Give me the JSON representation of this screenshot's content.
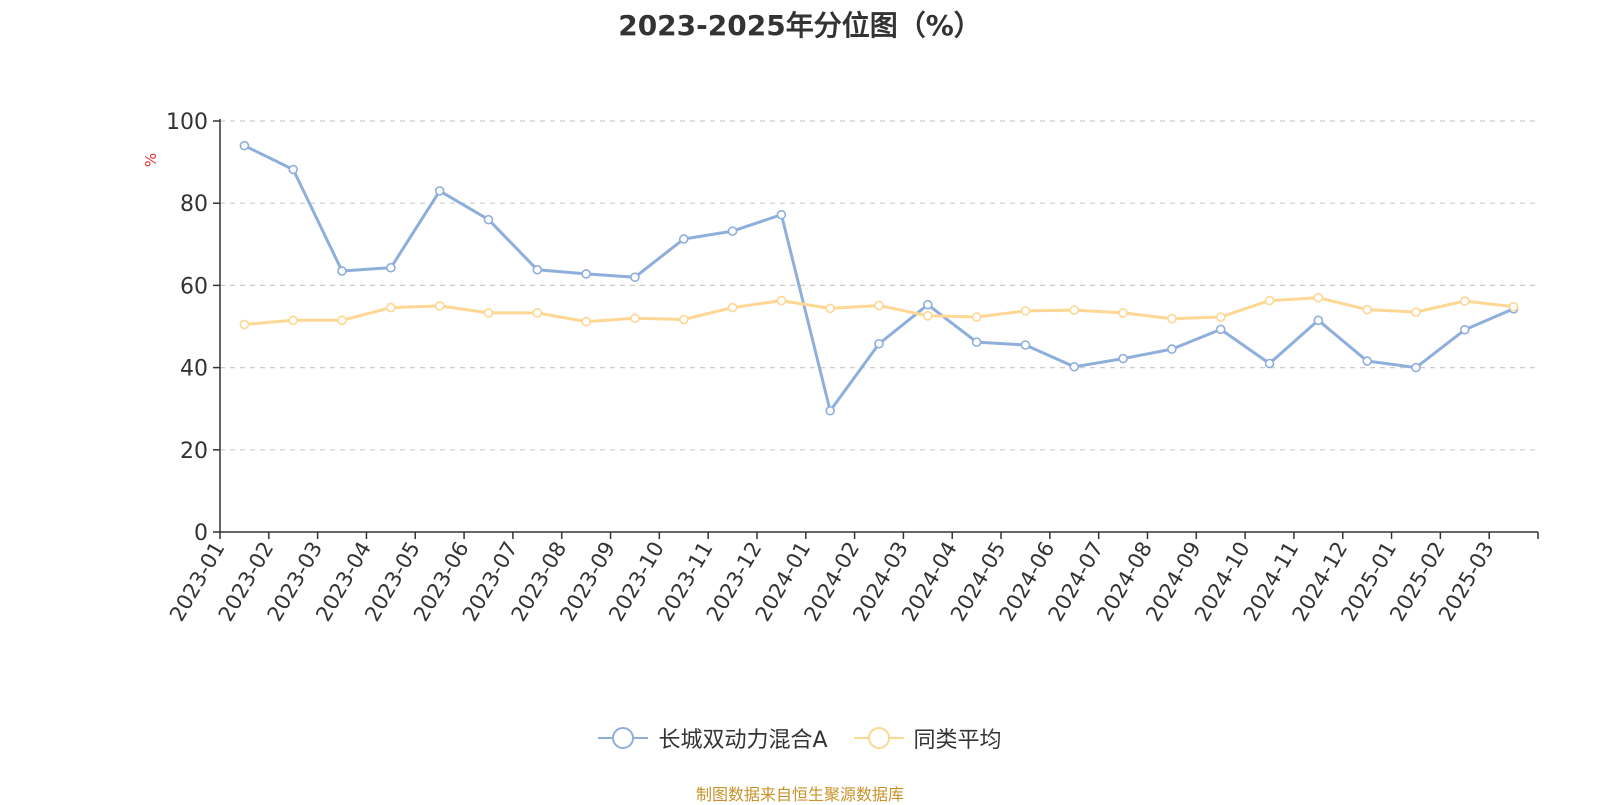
{
  "chart_data": {
    "type": "line",
    "title": "2023-2025年分位图（%）",
    "ylabel": "%",
    "ylim": [
      0,
      100
    ],
    "yticks": [
      0,
      20,
      40,
      60,
      80,
      100
    ],
    "grid": true,
    "legend_position": "bottom",
    "categories": [
      "2023-01",
      "2023-02",
      "2023-03",
      "2023-04",
      "2023-05",
      "2023-06",
      "2023-07",
      "2023-08",
      "2023-09",
      "2023-10",
      "2023-11",
      "2023-12",
      "2024-01",
      "2024-02",
      "2024-03",
      "2024-04",
      "2024-05",
      "2024-06",
      "2024-07",
      "2024-08",
      "2024-09",
      "2024-10",
      "2024-11",
      "2024-12",
      "2025-01",
      "2025-02",
      "2025-03"
    ],
    "series": [
      {
        "name": "长城双动力混合A",
        "color": "#8eaedb",
        "values": [
          94,
          88.2,
          63.5,
          64.3,
          83,
          76,
          63.8,
          62.8,
          62,
          71.3,
          73.2,
          77.2,
          29.5,
          45.8,
          55.3,
          46.2,
          45.5,
          40.2,
          42.2,
          44.5,
          49.3,
          41,
          51.5,
          41.6,
          40,
          49.2,
          54.3
        ]
      },
      {
        "name": "同类平均",
        "color": "#fdd793",
        "values": [
          50.5,
          51.5,
          51.5,
          54.6,
          55,
          53.3,
          53.3,
          51.2,
          52,
          51.7,
          54.6,
          56.3,
          54.4,
          55.1,
          52.6,
          52.3,
          53.8,
          54,
          53.3,
          51.9,
          52.3,
          56.3,
          57,
          54.1,
          53.5,
          56.2,
          54.8
        ]
      }
    ]
  },
  "footer": {
    "source": "制图数据来自恒生聚源数据库"
  }
}
